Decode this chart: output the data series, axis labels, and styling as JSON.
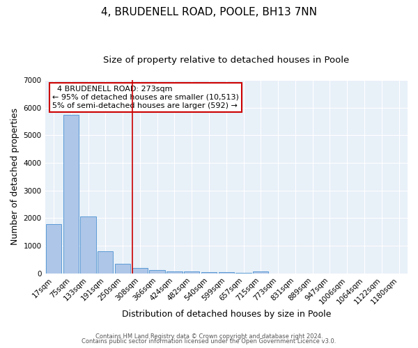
{
  "title": "4, BRUDENELL ROAD, POOLE, BH13 7NN",
  "subtitle": "Size of property relative to detached houses in Poole",
  "xlabel": "Distribution of detached houses by size in Poole",
  "ylabel": "Number of detached properties",
  "categories": [
    "17sqm",
    "75sqm",
    "133sqm",
    "191sqm",
    "250sqm",
    "308sqm",
    "366sqm",
    "424sqm",
    "482sqm",
    "540sqm",
    "599sqm",
    "657sqm",
    "715sqm",
    "773sqm",
    "831sqm",
    "889sqm",
    "947sqm",
    "1006sqm",
    "1064sqm",
    "1122sqm",
    "1180sqm"
  ],
  "values": [
    1780,
    5750,
    2050,
    800,
    340,
    190,
    110,
    70,
    55,
    40,
    30,
    20,
    65,
    0,
    0,
    0,
    0,
    0,
    0,
    0,
    0
  ],
  "bar_color": "#aec6e8",
  "bar_edge_color": "#5b9bd5",
  "vline_color": "#cc0000",
  "ylim": [
    0,
    7000
  ],
  "annotation_line1": "  4 BRUDENELL ROAD: 273sqm",
  "annotation_line2": "← 95% of detached houses are smaller (10,513)",
  "annotation_line3": "5% of semi-detached houses are larger (592) →",
  "annotation_box_color": "#ffffff",
  "annotation_box_edge": "#cc0000",
  "footer1": "Contains HM Land Registry data © Crown copyright and database right 2024.",
  "footer2": "Contains public sector information licensed under the Open Government Licence v3.0.",
  "background_color": "#e8f0f8",
  "title_fontsize": 11,
  "subtitle_fontsize": 9.5,
  "tick_fontsize": 7.5,
  "ylabel_fontsize": 9,
  "xlabel_fontsize": 9,
  "annotation_fontsize": 8,
  "footer_fontsize": 6
}
